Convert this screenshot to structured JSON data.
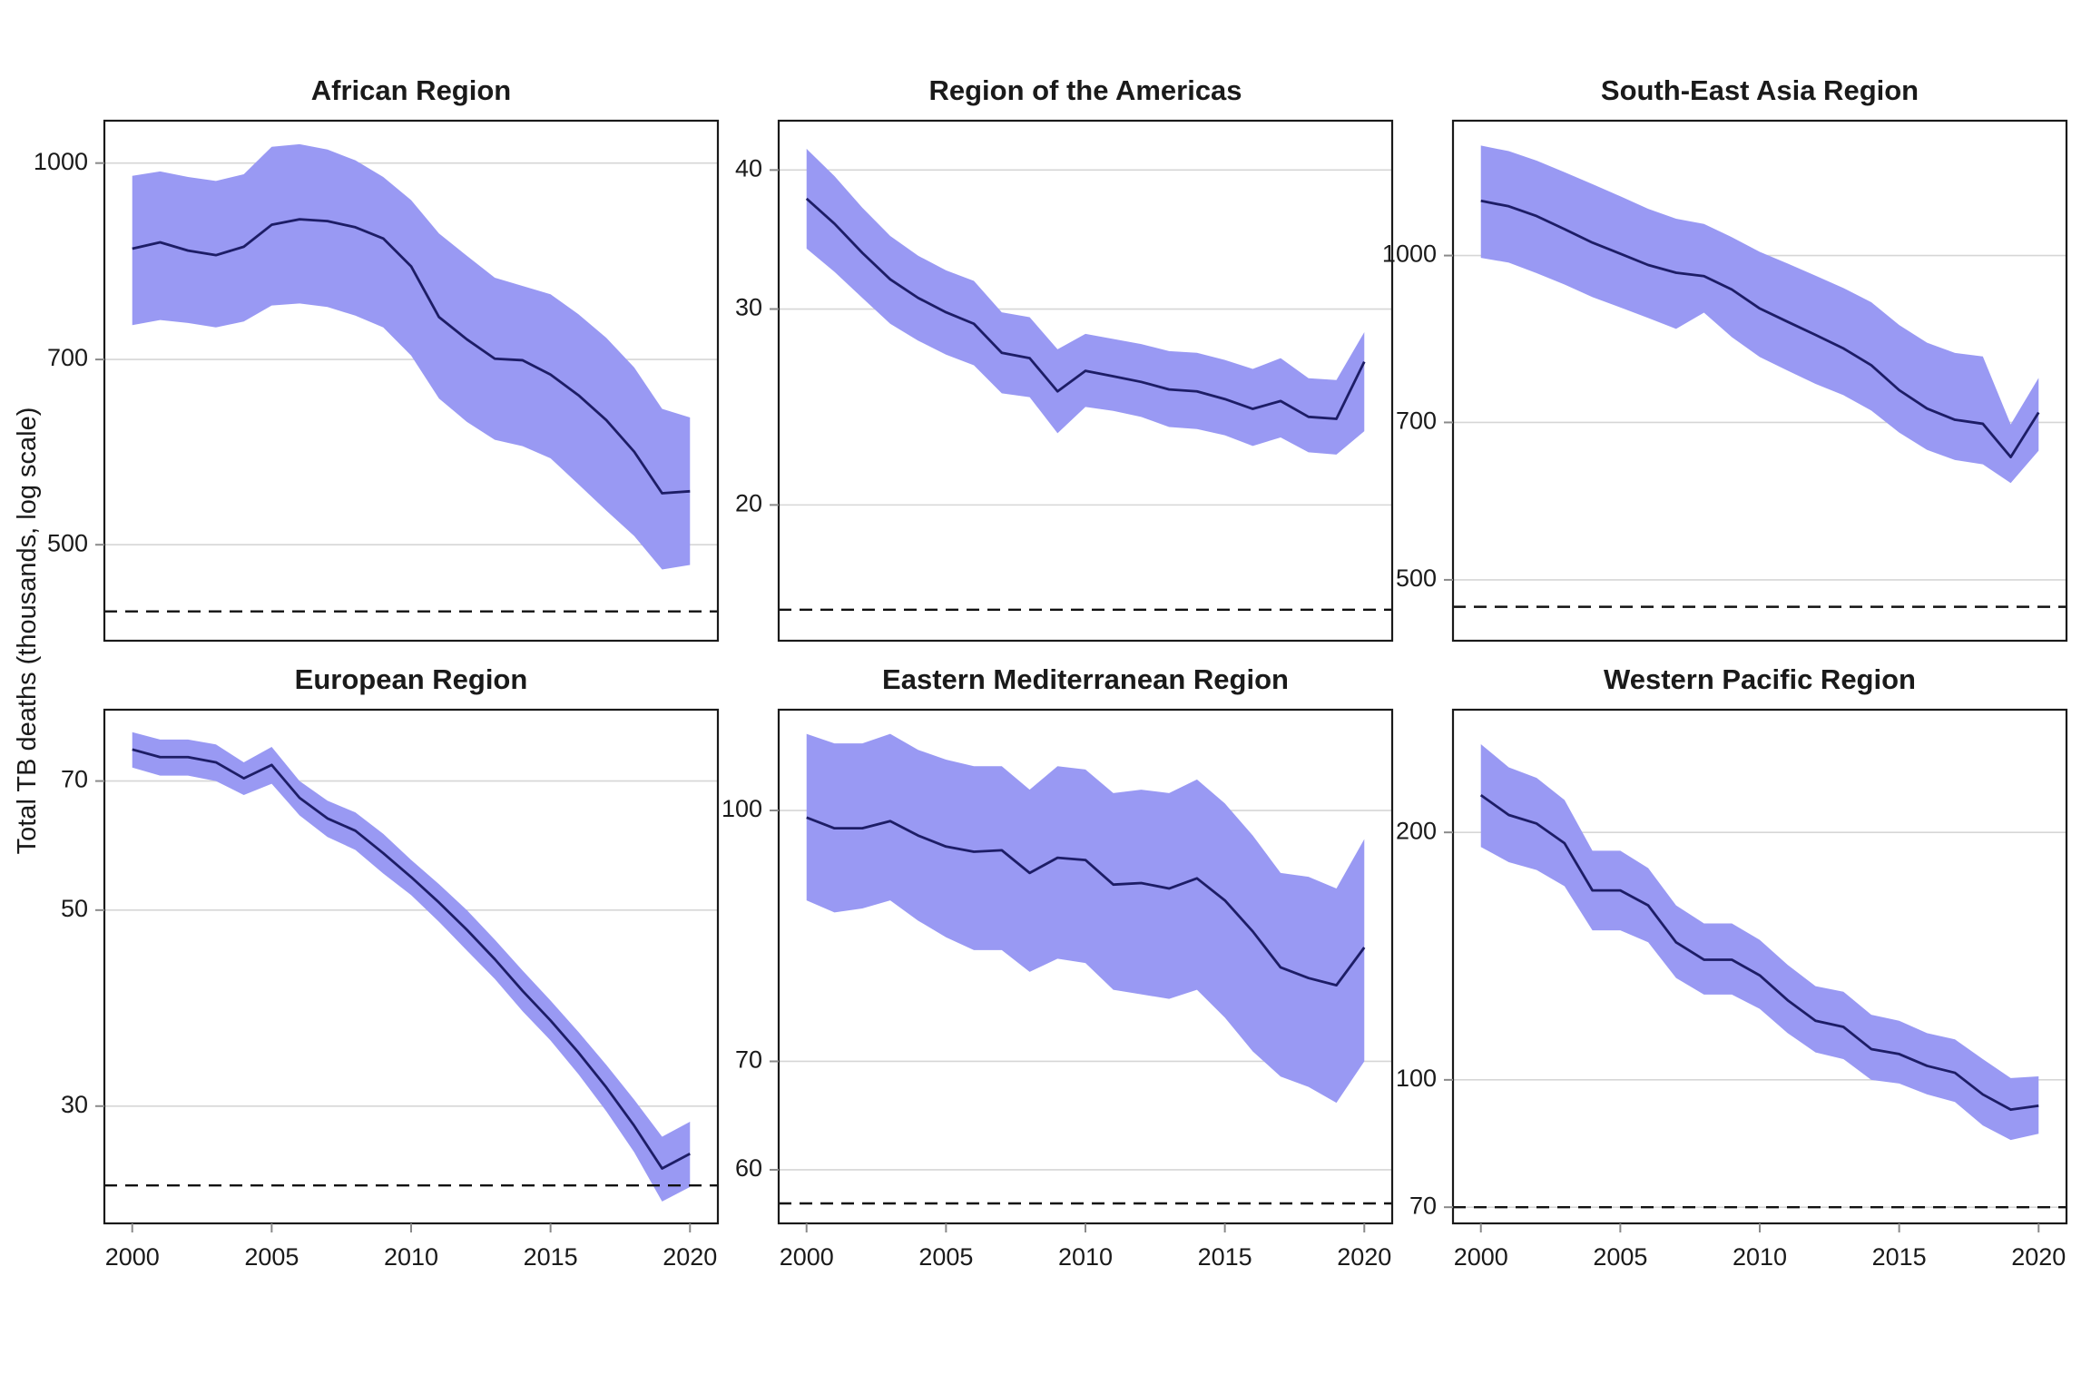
{
  "figure": {
    "y_axis_title": "Total TB deaths (thousands, log scale)",
    "x_tick_labels": [
      "2000",
      "2005",
      "2010",
      "2015",
      "2020"
    ],
    "x_ticks": [
      2000,
      2005,
      2010,
      2015,
      2020
    ],
    "colors": {
      "ribbon": "#9999f3",
      "line": "#1d1d66",
      "gridline": "#d6d6d6",
      "milestone_dashed": "#111111",
      "panel_border": "#1a1a1a",
      "tick_mark": "#8a8a8a",
      "text": "#1a1a1a",
      "background": "#ffffff"
    },
    "layout_hints": {
      "facets": "2 rows x 3 columns, free y scales",
      "grid": "horizontal major gridlines only",
      "legend": "none",
      "y_scale": "log10",
      "x_range_years": [
        2000,
        2020
      ]
    }
  },
  "chart_data": [
    {
      "type": "line",
      "title": "African Region",
      "years": [
        2000,
        2001,
        2002,
        2003,
        2004,
        2005,
        2006,
        2007,
        2008,
        2009,
        2010,
        2011,
        2012,
        2013,
        2014,
        2015,
        2016,
        2017,
        2018,
        2019,
        2020
      ],
      "series": [
        {
          "name": "best estimate",
          "values": [
            856,
            866,
            853,
            846,
            859,
            894,
            903,
            900,
            890,
            872,
            829,
            756,
            726,
            701,
            699,
            681,
            656,
            627,
            592,
            549,
            551
          ]
        },
        {
          "name": "lower bound",
          "values": [
            745,
            752,
            748,
            742,
            750,
            772,
            775,
            770,
            758,
            742,
            705,
            652,
            625,
            605,
            598,
            585,
            558,
            532,
            508,
            478,
            482
          ]
        },
        {
          "name": "upper bound",
          "values": [
            977,
            985,
            975,
            968,
            980,
            1030,
            1035,
            1025,
            1005,
            975,
            935,
            880,
            845,
            812,
            800,
            788,
            760,
            728,
            690,
            640,
            630
          ]
        }
      ],
      "dashed_line_value": 443,
      "y_ticks": [
        1000,
        700,
        500
      ],
      "ylim": [
        420,
        1080
      ]
    },
    {
      "type": "line",
      "title": "Region of the Americas",
      "years": [
        2000,
        2001,
        2002,
        2003,
        2004,
        2005,
        2006,
        2007,
        2008,
        2009,
        2010,
        2011,
        2012,
        2013,
        2014,
        2015,
        2016,
        2017,
        2018,
        2019,
        2020
      ],
      "series": [
        {
          "name": "best estimate",
          "values": [
            37.7,
            35.8,
            33.7,
            31.9,
            30.7,
            29.8,
            29.1,
            27.4,
            27.1,
            25.3,
            26.4,
            26.1,
            25.8,
            25.4,
            25.3,
            24.9,
            24.4,
            24.8,
            24.0,
            23.9,
            26.9
          ]
        },
        {
          "name": "lower bound",
          "values": [
            34.0,
            32.4,
            30.7,
            29.1,
            28.1,
            27.3,
            26.7,
            25.2,
            25.0,
            23.2,
            24.5,
            24.3,
            24.0,
            23.5,
            23.4,
            23.1,
            22.6,
            23.0,
            22.3,
            22.2,
            23.3
          ]
        },
        {
          "name": "upper bound",
          "values": [
            41.8,
            39.5,
            37.0,
            34.9,
            33.5,
            32.5,
            31.8,
            29.8,
            29.5,
            27.6,
            28.5,
            28.2,
            27.9,
            27.5,
            27.4,
            27.0,
            26.5,
            27.1,
            26.0,
            25.9,
            28.6
          ]
        }
      ],
      "dashed_line_value": 16.1,
      "y_ticks": [
        40,
        30,
        20
      ],
      "ylim": [
        15.1,
        44.3
      ]
    },
    {
      "type": "line",
      "title": "South-East Asia Region",
      "years": [
        2000,
        2001,
        2002,
        2003,
        2004,
        2005,
        2006,
        2007,
        2008,
        2009,
        2010,
        2011,
        2012,
        2013,
        2014,
        2015,
        2016,
        2017,
        2018,
        2019,
        2020
      ],
      "series": [
        {
          "name": "best estimate",
          "values": [
            1124,
            1111,
            1088,
            1058,
            1028,
            1004,
            980,
            964,
            957,
            930,
            893,
            868,
            844,
            820,
            791,
            750,
            721,
            704,
            698,
            650,
            715
          ]
        },
        {
          "name": "lower bound",
          "values": [
            995,
            985,
            963,
            940,
            915,
            895,
            875,
            855,
            885,
            840,
            805,
            782,
            760,
            742,
            718,
            685,
            660,
            646,
            640,
            615,
            659
          ]
        },
        {
          "name": "upper bound",
          "values": [
            1265,
            1250,
            1225,
            1195,
            1165,
            1135,
            1105,
            1082,
            1070,
            1040,
            1008,
            983,
            958,
            933,
            905,
            862,
            830,
            812,
            806,
            697,
            770
          ]
        }
      ],
      "dashed_line_value": 472,
      "y_ticks": [
        1000,
        700,
        500
      ],
      "ylim": [
        439,
        1334
      ]
    },
    {
      "type": "line",
      "title": "European Region",
      "years": [
        2000,
        2001,
        2002,
        2003,
        2004,
        2005,
        2006,
        2007,
        2008,
        2009,
        2010,
        2011,
        2012,
        2013,
        2014,
        2015,
        2016,
        2017,
        2018,
        2019,
        2020
      ],
      "series": [
        {
          "name": "best estimate",
          "values": [
            76,
            74.5,
            74.5,
            73.5,
            70.5,
            73,
            67,
            63.5,
            61.5,
            58,
            54.5,
            51,
            47.5,
            44,
            40.5,
            37.5,
            34.5,
            31.5,
            28.5,
            25.5,
            26.5
          ]
        },
        {
          "name": "lower bound",
          "values": [
            72.5,
            71,
            71,
            70,
            67.5,
            69.5,
            64,
            60.5,
            58.5,
            55,
            52,
            48.5,
            45,
            41.8,
            38.4,
            35.6,
            32.6,
            29.6,
            26.6,
            23.4,
            24.3
          ]
        },
        {
          "name": "upper bound",
          "values": [
            79.5,
            78,
            78,
            77,
            73.5,
            76.5,
            70,
            66.5,
            64.5,
            61,
            57,
            53.5,
            50,
            46.3,
            42.7,
            39.5,
            36.4,
            33.4,
            30.5,
            27.7,
            28.8
          ]
        }
      ],
      "dashed_line_value": 24.4,
      "y_ticks": [
        70,
        50,
        30
      ],
      "ylim": [
        22.1,
        84.3
      ]
    },
    {
      "type": "line",
      "title": "Eastern Mediterranean Region",
      "years": [
        2000,
        2001,
        2002,
        2003,
        2004,
        2005,
        2006,
        2007,
        2008,
        2009,
        2010,
        2011,
        2012,
        2013,
        2014,
        2015,
        2016,
        2017,
        2018,
        2019,
        2020
      ],
      "series": [
        {
          "name": "best estimate",
          "values": [
            99,
            97.5,
            97.5,
            98.5,
            96.5,
            95,
            94.3,
            94.5,
            91.5,
            93.5,
            93.2,
            90,
            90.2,
            89.5,
            90.8,
            88,
            84.2,
            80,
            78.8,
            78,
            82.3
          ]
        },
        {
          "name": "lower bound",
          "values": [
            88,
            86.5,
            87,
            88,
            85.5,
            83.5,
            82,
            82,
            79.5,
            81,
            80.5,
            77.5,
            77,
            76.5,
            77.5,
            74.5,
            71,
            68.5,
            67.5,
            66,
            70
          ]
        },
        {
          "name": "upper bound",
          "values": [
            111.5,
            110,
            110,
            111.5,
            109,
            107.5,
            106.5,
            106.5,
            103,
            106.5,
            106,
            102.5,
            103,
            102.5,
            104.5,
            101,
            96.5,
            91.5,
            91,
            89.5,
            96
          ]
        }
      ],
      "dashed_line_value": 57.2,
      "y_ticks": [
        100,
        70,
        60
      ],
      "ylim": [
        55.6,
        115.4
      ]
    },
    {
      "type": "line",
      "title": "Western Pacific Region",
      "years": [
        2000,
        2001,
        2002,
        2003,
        2004,
        2005,
        2006,
        2007,
        2008,
        2009,
        2010,
        2011,
        2012,
        2013,
        2014,
        2015,
        2016,
        2017,
        2018,
        2019,
        2020
      ],
      "series": [
        {
          "name": "best estimate",
          "values": [
            222,
            210,
            205,
            194,
            170,
            170,
            163,
            147,
            140,
            140,
            134,
            125,
            118,
            116,
            109,
            107.5,
            104,
            102,
            96,
            92,
            93
          ]
        },
        {
          "name": "lower bound",
          "values": [
            192,
            184,
            180,
            172,
            152,
            152,
            147,
            133,
            127,
            127,
            122,
            114,
            108,
            106,
            100,
            99,
            96,
            94,
            88,
            84.5,
            86
          ]
        },
        {
          "name": "upper bound",
          "values": [
            256,
            240,
            233,
            219,
            190,
            190,
            181,
            163,
            155,
            155,
            148,
            138,
            130,
            128,
            120,
            118,
            114,
            112,
            106,
            100.5,
            101
          ]
        }
      ],
      "dashed_line_value": 70,
      "y_ticks": [
        200,
        100,
        70
      ],
      "ylim": [
        66.9,
        282
      ]
    }
  ]
}
